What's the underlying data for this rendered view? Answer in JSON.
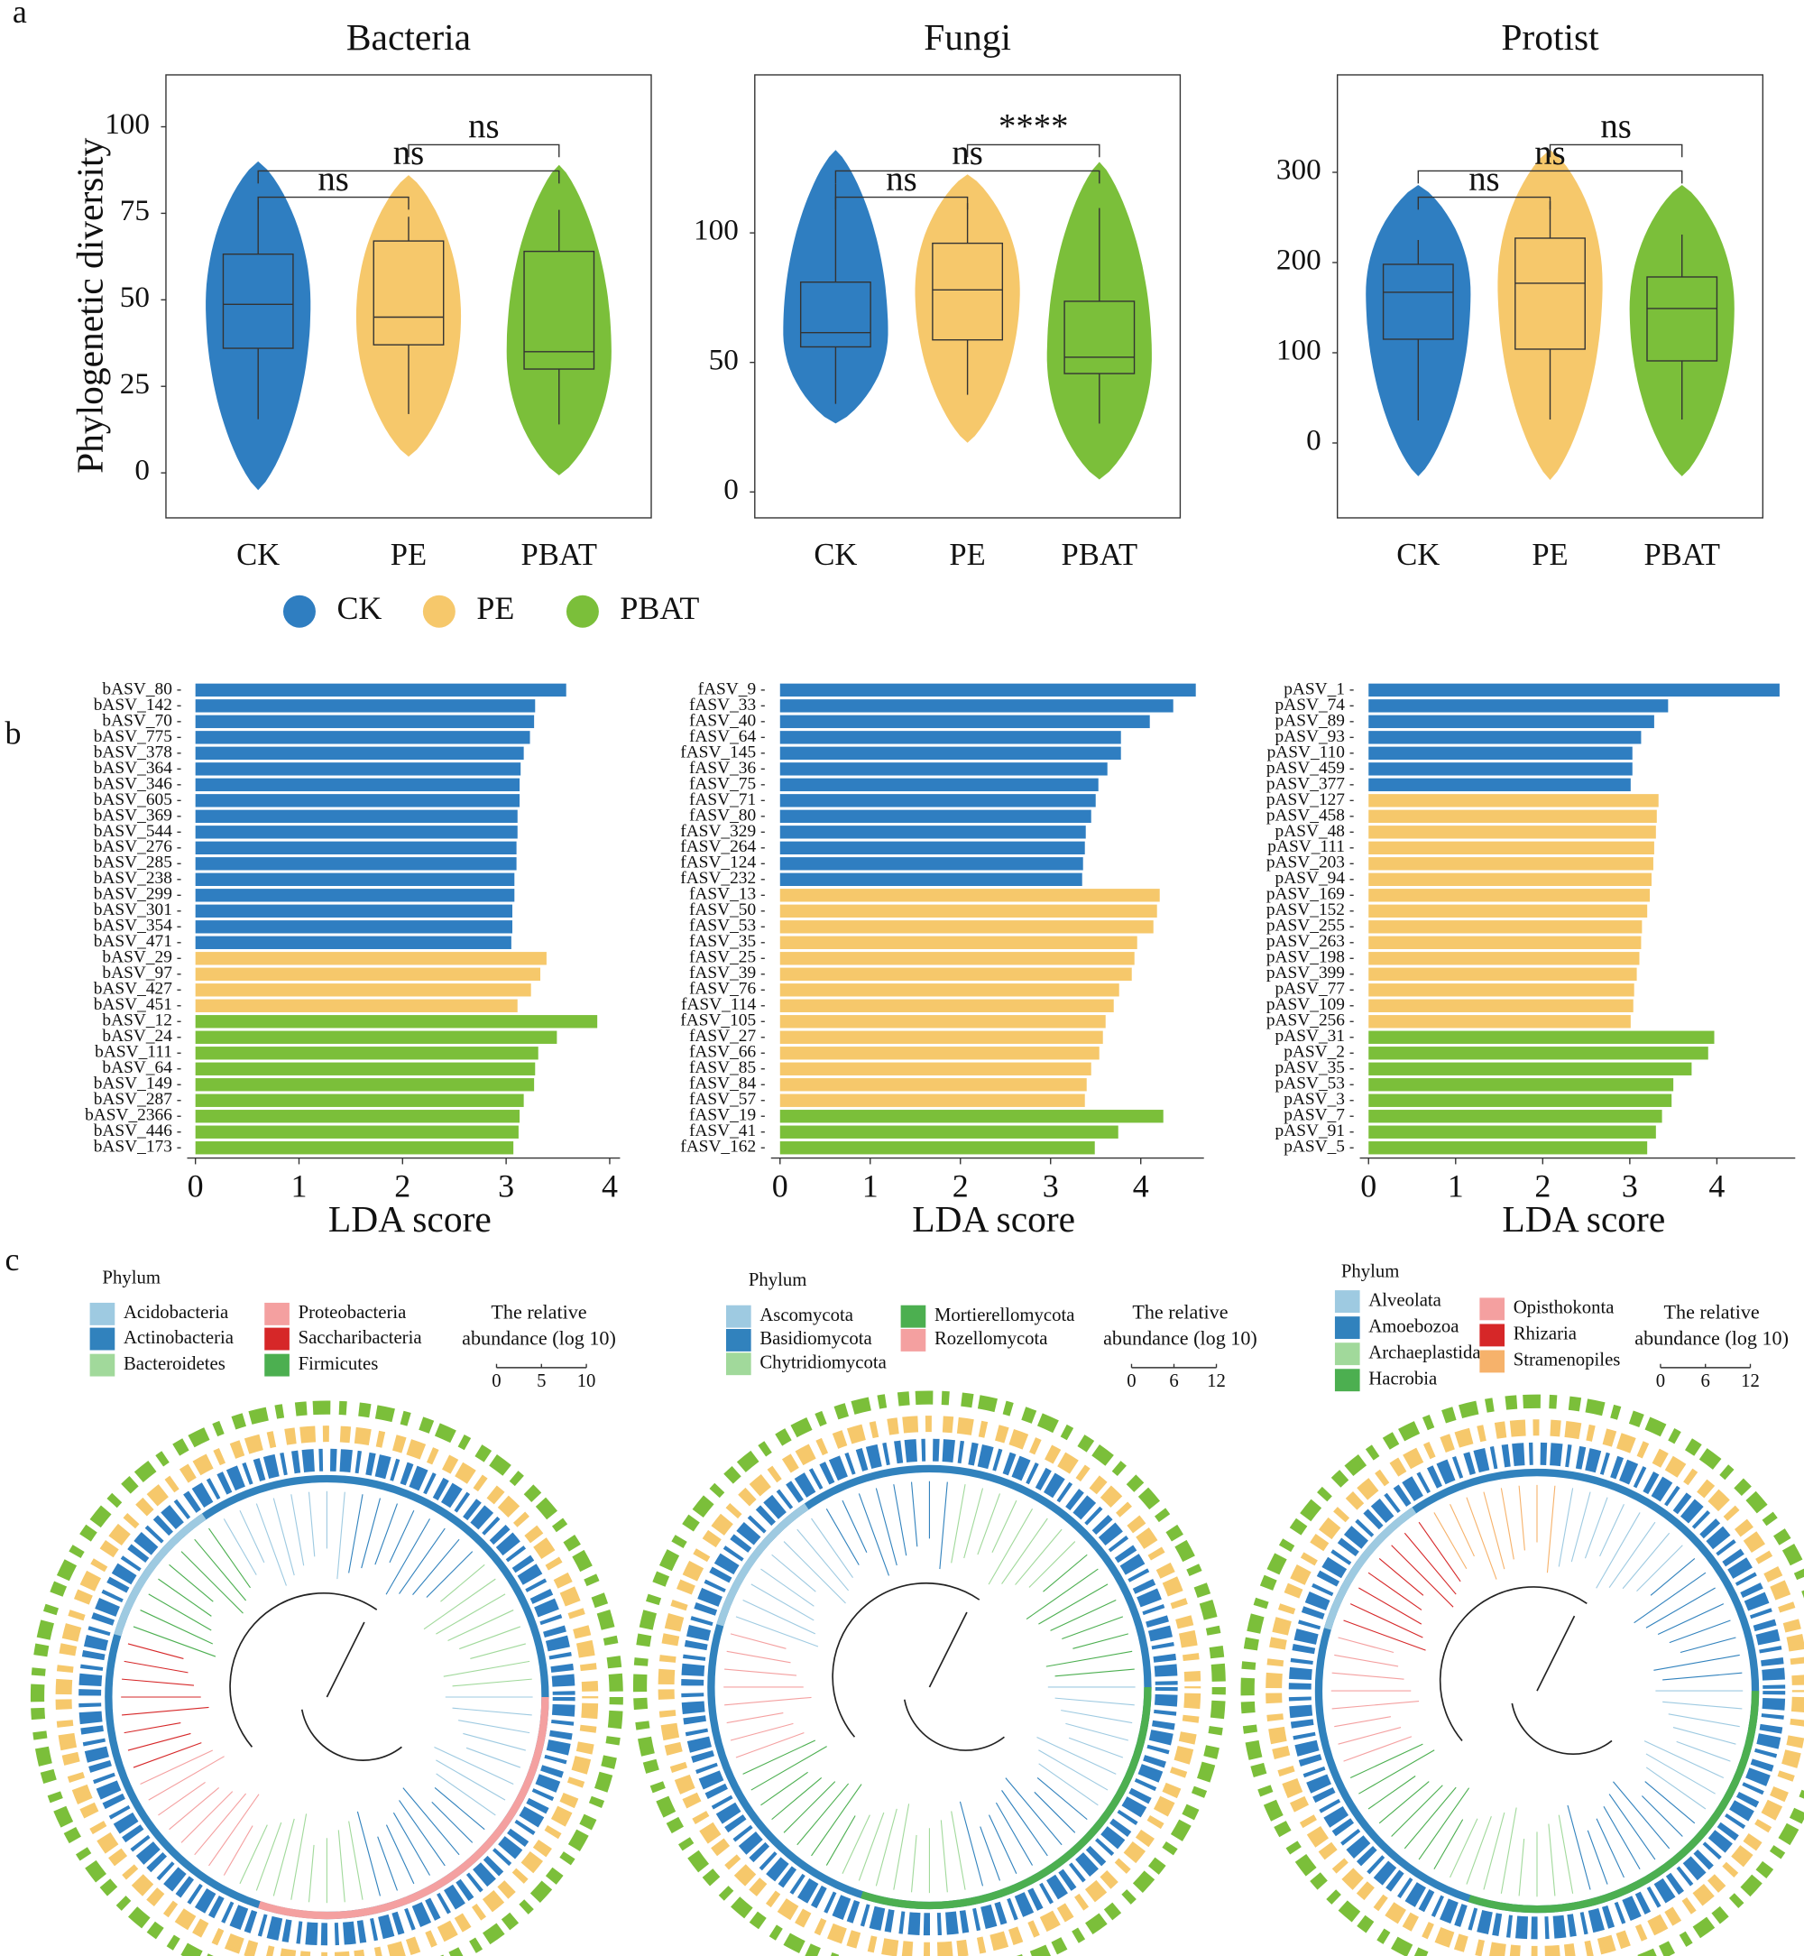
{
  "panel_labels": [
    "a",
    "b",
    "c"
  ],
  "legend": {
    "labels": [
      "CK",
      "PE",
      "PBAT"
    ],
    "colors": [
      "#2f7ec1",
      "#f6c86b",
      "#7bbf3a"
    ]
  },
  "chart_data": [
    {
      "type": "violin",
      "title": "Bacteria",
      "ylabel": "Phylogenetic diversity",
      "categories": [
        "CK",
        "PE",
        "PBAT"
      ],
      "colors": [
        "#2f7ec1",
        "#f6c86b",
        "#7bbf3a"
      ],
      "ylim": [
        -13,
        115
      ],
      "yticks": [
        0,
        25,
        50,
        75,
        100
      ],
      "median": [
        48.7,
        45,
        35
      ],
      "q1": [
        36,
        37,
        30
      ],
      "q3": [
        63.2,
        67,
        64
      ],
      "whisker_low": [
        15.5,
        17,
        14
      ],
      "whisker_high": [
        78.7,
        74,
        76
      ],
      "range_low": [
        -5,
        4.7,
        -0.7
      ],
      "range_high": [
        90,
        86,
        89
      ],
      "annotations": [
        {
          "from": 0,
          "to": 1,
          "label": "ns"
        },
        {
          "from": 0,
          "to": 2,
          "label": "ns"
        },
        {
          "from": 1,
          "to": 2,
          "label": "ns"
        }
      ]
    },
    {
      "type": "violin",
      "title": "Fungi",
      "categories": [
        "CK",
        "PE",
        "PBAT"
      ],
      "colors": [
        "#2f7ec1",
        "#f6c86b",
        "#7bbf3a"
      ],
      "ylim": [
        -10,
        161
      ],
      "yticks": [
        0,
        50,
        100
      ],
      "median": [
        61.5,
        78,
        52
      ],
      "q1": [
        56,
        58.7,
        45.7
      ],
      "q3": [
        81,
        96,
        73.6
      ],
      "whisker_low": [
        34,
        37.5,
        26.4
      ],
      "whisker_high": [
        119,
        111.5,
        109.6
      ],
      "range_low": [
        26.4,
        19,
        4.8
      ],
      "range_high": [
        132,
        122.6,
        127.4
      ],
      "annotations": [
        {
          "from": 0,
          "to": 1,
          "label": "ns"
        },
        {
          "from": 0,
          "to": 2,
          "label": "ns"
        },
        {
          "from": 1,
          "to": 2,
          "label": "****"
        }
      ]
    },
    {
      "type": "violin",
      "title": "Protist",
      "categories": [
        "CK",
        "PE",
        "PBAT"
      ],
      "colors": [
        "#2f7ec1",
        "#f6c86b",
        "#7bbf3a"
      ],
      "ylim": [
        -83,
        408
      ],
      "yticks": [
        0,
        100,
        200,
        300
      ],
      "median": [
        167,
        177,
        149
      ],
      "q1": [
        115,
        104,
        91
      ],
      "q3": [
        198,
        227,
        184
      ],
      "whisker_low": [
        25,
        26,
        26
      ],
      "whisker_high": [
        225,
        268,
        231
      ],
      "range_low": [
        -37,
        -41,
        -37
      ],
      "range_high": [
        286,
        325,
        286
      ],
      "annotations": [
        {
          "from": 0,
          "to": 1,
          "label": "ns"
        },
        {
          "from": 0,
          "to": 2,
          "label": "ns"
        },
        {
          "from": 1,
          "to": 2,
          "label": "ns"
        }
      ]
    },
    {
      "type": "barh",
      "xlabel": "LDA score",
      "xlim": [
        -0.08,
        4.1
      ],
      "xticks": [
        0,
        1,
        2,
        3,
        4
      ],
      "categories": [
        "bASV_80",
        "bASV_142",
        "bASV_70",
        "bASV_775",
        "bASV_378",
        "bASV_364",
        "bASV_346",
        "bASV_605",
        "bASV_369",
        "bASV_544",
        "bASV_276",
        "bASV_285",
        "bASV_238",
        "bASV_299",
        "bASV_301",
        "bASV_354",
        "bASV_471",
        "bASV_29",
        "bASV_97",
        "bASV_427",
        "bASV_451",
        "bASV_12",
        "bASV_24",
        "bASV_111",
        "bASV_64",
        "bASV_149",
        "bASV_287",
        "bASV_2366",
        "bASV_446",
        "bASV_173"
      ],
      "values": [
        3.58,
        3.28,
        3.27,
        3.23,
        3.17,
        3.14,
        3.13,
        3.13,
        3.11,
        3.11,
        3.1,
        3.1,
        3.08,
        3.08,
        3.06,
        3.06,
        3.05,
        3.39,
        3.33,
        3.24,
        3.11,
        3.88,
        3.49,
        3.31,
        3.28,
        3.27,
        3.17,
        3.13,
        3.12,
        3.07
      ],
      "colors": [
        "#2f7ec1",
        "#2f7ec1",
        "#2f7ec1",
        "#2f7ec1",
        "#2f7ec1",
        "#2f7ec1",
        "#2f7ec1",
        "#2f7ec1",
        "#2f7ec1",
        "#2f7ec1",
        "#2f7ec1",
        "#2f7ec1",
        "#2f7ec1",
        "#2f7ec1",
        "#2f7ec1",
        "#2f7ec1",
        "#2f7ec1",
        "#f6c86b",
        "#f6c86b",
        "#f6c86b",
        "#f6c86b",
        "#7bbf3a",
        "#7bbf3a",
        "#7bbf3a",
        "#7bbf3a",
        "#7bbf3a",
        "#7bbf3a",
        "#7bbf3a",
        "#7bbf3a",
        "#7bbf3a"
      ]
    },
    {
      "type": "barh",
      "xlabel": "LDA score",
      "xlim": [
        -0.1,
        4.7
      ],
      "xticks": [
        0,
        1,
        2,
        3,
        4
      ],
      "categories": [
        "fASV_9",
        "fASV_33",
        "fASV_40",
        "fASV_64",
        "fASV_145",
        "fASV_36",
        "fASV_75",
        "fASV_71",
        "fASV_80",
        "fASV_329",
        "fASV_264",
        "fASV_124",
        "fASV_232",
        "fASV_13",
        "fASV_50",
        "fASV_53",
        "fASV_35",
        "fASV_25",
        "fASV_39",
        "fASV_76",
        "fASV_114",
        "fASV_105",
        "fASV_27",
        "fASV_66",
        "fASV_85",
        "fASV_84",
        "fASV_57",
        "fASV_19",
        "fASV_41",
        "fASV_162"
      ],
      "values": [
        4.61,
        4.36,
        4.1,
        3.78,
        3.78,
        3.63,
        3.53,
        3.5,
        3.45,
        3.39,
        3.38,
        3.36,
        3.35,
        4.21,
        4.18,
        4.14,
        3.96,
        3.93,
        3.9,
        3.76,
        3.7,
        3.61,
        3.58,
        3.54,
        3.45,
        3.4,
        3.38,
        4.25,
        3.75,
        3.49
      ],
      "colors": [
        "#2f7ec1",
        "#2f7ec1",
        "#2f7ec1",
        "#2f7ec1",
        "#2f7ec1",
        "#2f7ec1",
        "#2f7ec1",
        "#2f7ec1",
        "#2f7ec1",
        "#2f7ec1",
        "#2f7ec1",
        "#2f7ec1",
        "#2f7ec1",
        "#f6c86b",
        "#f6c86b",
        "#f6c86b",
        "#f6c86b",
        "#f6c86b",
        "#f6c86b",
        "#f6c86b",
        "#f6c86b",
        "#f6c86b",
        "#f6c86b",
        "#f6c86b",
        "#f6c86b",
        "#f6c86b",
        "#f6c86b",
        "#7bbf3a",
        "#7bbf3a",
        "#7bbf3a"
      ]
    },
    {
      "type": "barh",
      "xlabel": "LDA score",
      "xlim": [
        -0.1,
        4.9
      ],
      "xticks": [
        0,
        1,
        2,
        3,
        4
      ],
      "categories": [
        "pASV_1",
        "pASV_74",
        "pASV_89",
        "pASV_93",
        "pASV_110",
        "pASV_459",
        "pASV_377",
        "pASV_127",
        "pASV_458",
        "pASV_48",
        "pASV_111",
        "pASV_203",
        "pASV_94",
        "pASV_169",
        "pASV_152",
        "pASV_255",
        "pASV_263",
        "pASV_198",
        "pASV_399",
        "pASV_77",
        "pASV_109",
        "pASV_256",
        "pASV_31",
        "pASV_2",
        "pASV_35",
        "pASV_53",
        "pASV_3",
        "pASV_7",
        "pASV_91",
        "pASV_5"
      ],
      "values": [
        4.72,
        3.44,
        3.28,
        3.13,
        3.03,
        3.03,
        3.01,
        3.33,
        3.31,
        3.3,
        3.28,
        3.27,
        3.25,
        3.23,
        3.2,
        3.14,
        3.13,
        3.11,
        3.08,
        3.05,
        3.04,
        3.01,
        3.97,
        3.9,
        3.71,
        3.5,
        3.48,
        3.37,
        3.3,
        3.2
      ],
      "colors": [
        "#2f7ec1",
        "#2f7ec1",
        "#2f7ec1",
        "#2f7ec1",
        "#2f7ec1",
        "#2f7ec1",
        "#2f7ec1",
        "#f6c86b",
        "#f6c86b",
        "#f6c86b",
        "#f6c86b",
        "#f6c86b",
        "#f6c86b",
        "#f6c86b",
        "#f6c86b",
        "#f6c86b",
        "#f6c86b",
        "#f6c86b",
        "#f6c86b",
        "#f6c86b",
        "#f6c86b",
        "#f6c86b",
        "#7bbf3a",
        "#7bbf3a",
        "#7bbf3a",
        "#7bbf3a",
        "#7bbf3a",
        "#7bbf3a",
        "#7bbf3a",
        "#7bbf3a"
      ]
    }
  ],
  "panel_c": [
    {
      "phylum_title": "Phylum",
      "phyla": [
        {
          "name": "Acidobacteria",
          "color": "#9ecae1"
        },
        {
          "name": "Actinobacteria",
          "color": "#3182bd"
        },
        {
          "name": "Bacteroidetes",
          "color": "#a1d99b"
        },
        {
          "name": "Proteobacteria",
          "color": "#f4a0a0"
        },
        {
          "name": "Saccharibacteria",
          "color": "#d62728"
        },
        {
          "name": "Firmicutes",
          "color": "#4caf50"
        }
      ],
      "abundance_title": [
        "The relative",
        "abundance (log 10)"
      ],
      "abundance_ticks": [
        0,
        5,
        10
      ]
    },
    {
      "phylum_title": "Phylum",
      "phyla": [
        {
          "name": "Ascomycota",
          "color": "#9ecae1"
        },
        {
          "name": "Basidiomycota",
          "color": "#3182bd"
        },
        {
          "name": "Chytridiomycota",
          "color": "#a1d99b"
        },
        {
          "name": "Mortierellomycota",
          "color": "#4caf50"
        },
        {
          "name": "Rozellomycota",
          "color": "#f4a0a0"
        }
      ],
      "abundance_title": [
        "The relative",
        "abundance (log 10)"
      ],
      "abundance_ticks": [
        0,
        6,
        12
      ]
    },
    {
      "phylum_title": "Phylum",
      "phyla": [
        {
          "name": "Alveolata",
          "color": "#9ecae1"
        },
        {
          "name": "Amoebozoa",
          "color": "#3182bd"
        },
        {
          "name": "Archaeplastida",
          "color": "#a1d99b"
        },
        {
          "name": "Hacrobia",
          "color": "#4caf50"
        },
        {
          "name": "Opisthokonta",
          "color": "#f4a0a0"
        },
        {
          "name": "Rhizaria",
          "color": "#d62728"
        },
        {
          "name": "Stramenopiles",
          "color": "#f6b26b"
        }
      ],
      "abundance_title": [
        "The relative",
        "abundance (log 10)"
      ],
      "abundance_ticks": [
        0,
        6,
        12
      ]
    }
  ]
}
